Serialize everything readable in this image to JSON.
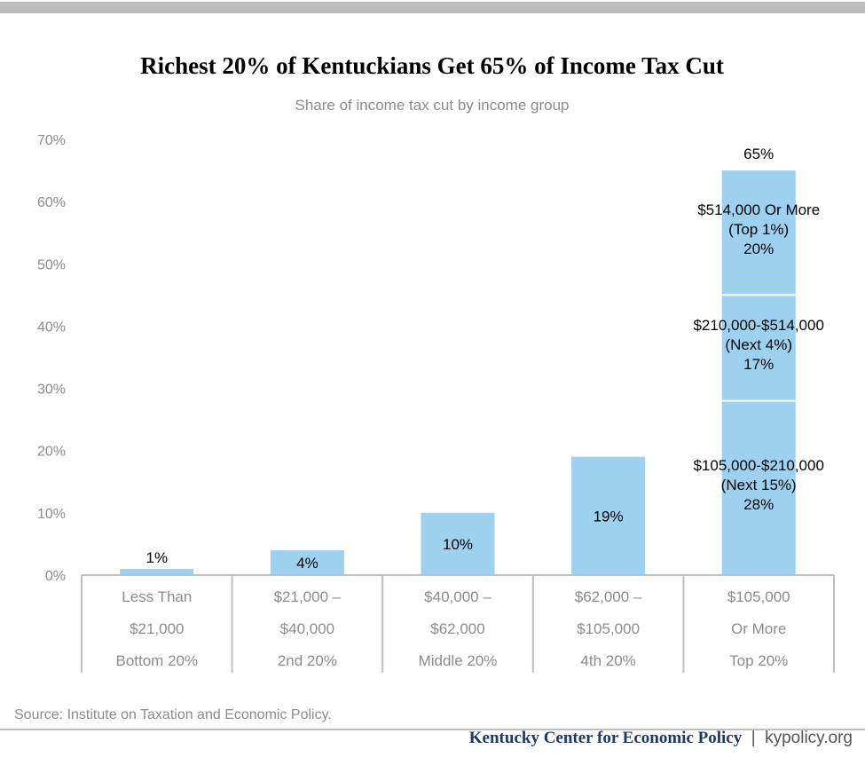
{
  "colors": {
    "top_rule": "#bdbdbd",
    "bar": "#9dd1ef",
    "divider": "#ffffff",
    "axis": "#bfbfbf",
    "tick_text": "#8c8c8c",
    "title_text": "#000000",
    "footer_brand": "#1f3864",
    "footer_url": "#555555"
  },
  "chart_data": {
    "type": "bar",
    "title": "Richest 20% of Kentuckians Get 65% of Income Tax Cut",
    "subtitle": "Share of income tax cut by income group",
    "ylim": [
      0,
      70
    ],
    "yticks": [
      "0%",
      "10%",
      "20%",
      "30%",
      "40%",
      "50%",
      "60%",
      "70%"
    ],
    "grid": false,
    "categories": [
      {
        "lines": [
          "Less Than",
          "$21,000",
          "Bottom 20%"
        ]
      },
      {
        "lines": [
          "$21,000 –",
          "$40,000",
          "2nd 20%"
        ]
      },
      {
        "lines": [
          "$40,000 –",
          "$62,000",
          "Middle 20%"
        ]
      },
      {
        "lines": [
          "$62,000 –",
          "$105,000",
          "4th 20%"
        ]
      },
      {
        "lines": [
          "$105,000",
          "Or More",
          "Top 20%"
        ]
      }
    ],
    "values": [
      1,
      4,
      10,
      19,
      65
    ],
    "labels": [
      "1%",
      "4%",
      "10%",
      "19%",
      "65%"
    ],
    "stacked_segments": [
      {
        "value": 28,
        "lines": [
          "$105,000-$210,000",
          "(Next 15%)",
          "28%"
        ]
      },
      {
        "value": 17,
        "lines": [
          "$210,000-$514,000",
          "(Next 4%)",
          "17%"
        ]
      },
      {
        "value": 20,
        "lines": [
          "$514,000 Or More",
          "(Top 1%)",
          "20%"
        ]
      }
    ]
  },
  "footer": {
    "source": "Source: Institute on Taxation and Economic Policy.",
    "brand": "Kentucky Center for Economic Policy",
    "separator": "|",
    "url": "kypolicy.org"
  }
}
